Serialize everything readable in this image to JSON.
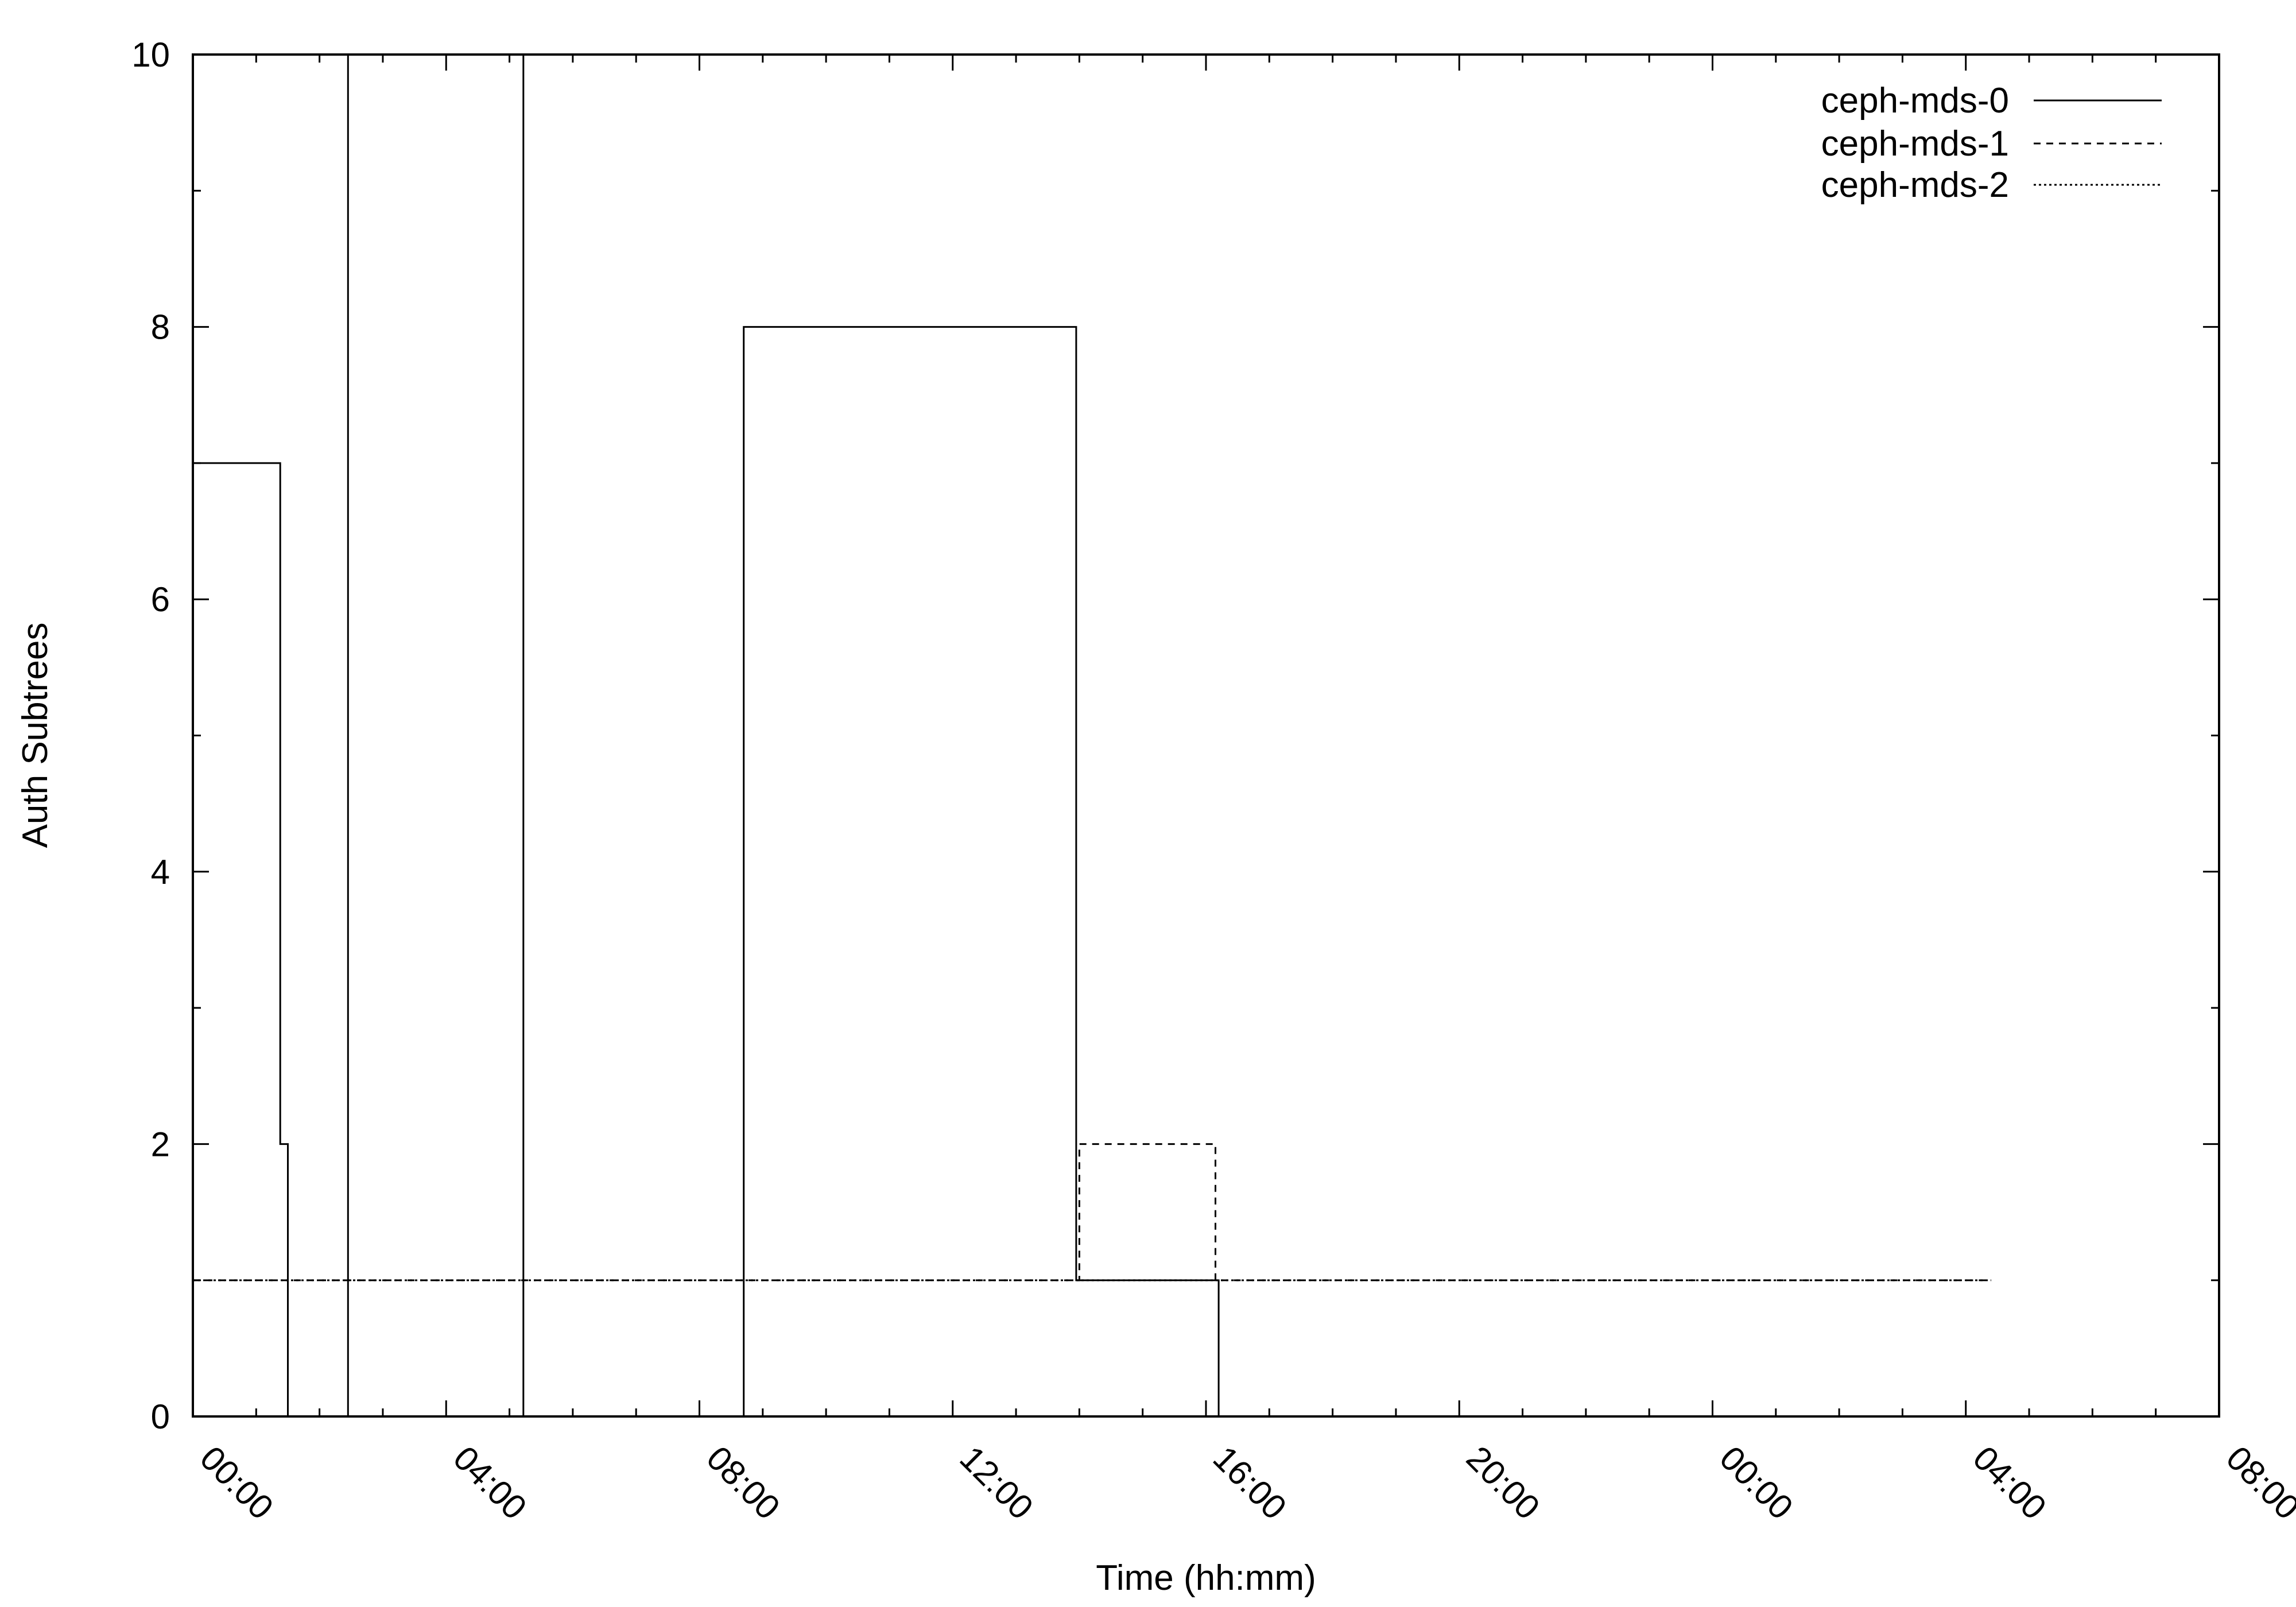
{
  "chart_data": {
    "type": "line",
    "xlabel": "Time (hh:mm)",
    "ylabel": "Auth Subtrees",
    "x_unit": "hours",
    "xlim": [
      0,
      32
    ],
    "ylim": [
      0,
      10
    ],
    "x_ticks": [
      0,
      4,
      8,
      12,
      16,
      20,
      24,
      28,
      32
    ],
    "x_tick_labels": [
      "00:00",
      "04:00",
      "08:00",
      "12:00",
      "16:00",
      "20:00",
      "00:00",
      "04:00",
      "08:00"
    ],
    "y_ticks": [
      0,
      2,
      4,
      6,
      8,
      10
    ],
    "y_tick_labels": [
      "0",
      "2",
      "4",
      "6",
      "8",
      "10"
    ],
    "grid": false,
    "legend_position": "top-right",
    "series": [
      {
        "name": "ceph-mds-0",
        "style": "solid",
        "points": [
          [
            0,
            0
          ],
          [
            0,
            7
          ],
          [
            1.38,
            7
          ],
          [
            1.38,
            2
          ],
          [
            1.5,
            2
          ],
          [
            1.5,
            0
          ],
          [
            2.45,
            0
          ],
          [
            2.45,
            10
          ],
          [
            5.22,
            10
          ],
          [
            5.22,
            0
          ],
          [
            8.7,
            0
          ],
          [
            8.7,
            8
          ],
          [
            13.95,
            8
          ],
          [
            13.95,
            1
          ],
          [
            16.2,
            1
          ],
          [
            16.2,
            0
          ]
        ]
      },
      {
        "name": "ceph-mds-1",
        "style": "dashed",
        "points": [
          [
            0,
            1
          ],
          [
            1.38,
            1
          ],
          [
            14.0,
            1
          ],
          [
            14.0,
            2
          ],
          [
            16.15,
            2
          ],
          [
            16.15,
            1
          ],
          [
            28.4,
            1
          ]
        ]
      },
      {
        "name": "ceph-mds-2",
        "style": "dotted",
        "points": [
          [
            0,
            1
          ],
          [
            28.4,
            1
          ]
        ]
      }
    ]
  }
}
